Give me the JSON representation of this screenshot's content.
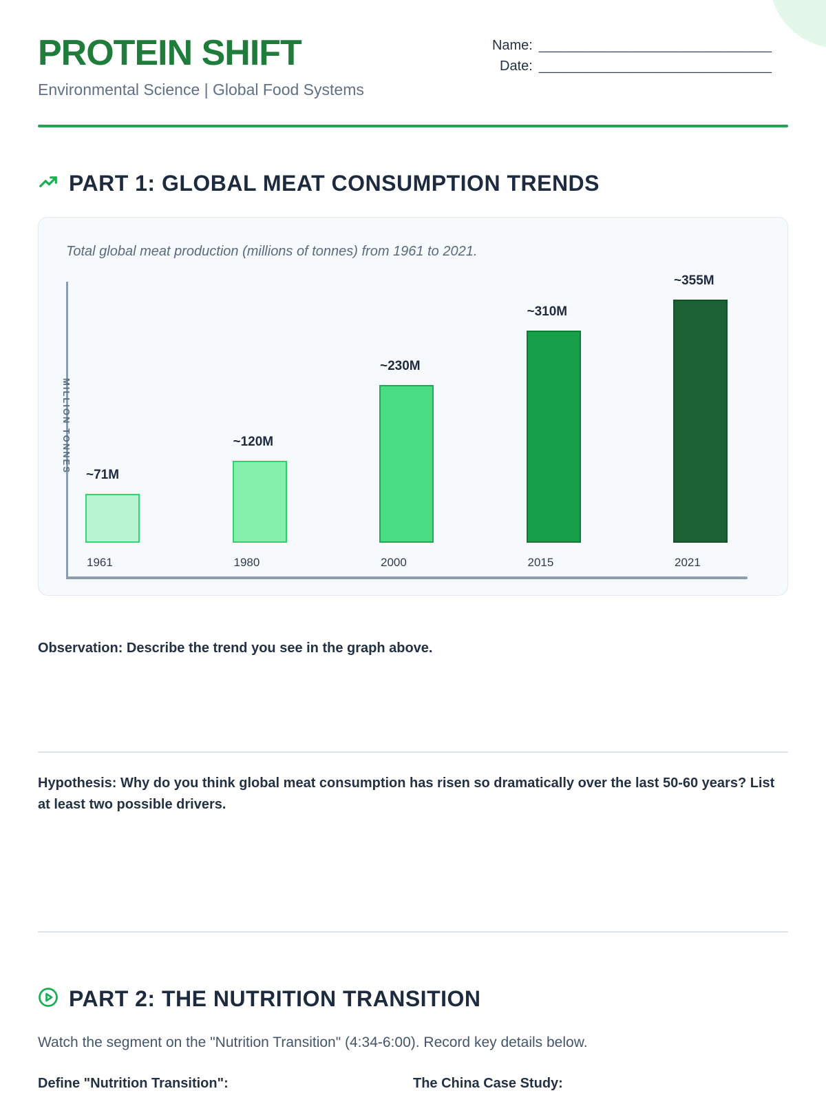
{
  "header": {
    "title": "PROTEIN SHIFT",
    "subtitle": "Environmental Science | Global Food Systems",
    "name_label": "Name:",
    "date_label": "Date:",
    "name_line": "________________________________",
    "date_line": "________________________________"
  },
  "part1": {
    "heading": "PART 1: GLOBAL MEAT CONSUMPTION TRENDS",
    "observation_prompt": "Observation: Describe the trend you see in the graph above.",
    "hypothesis_prompt": "Hypothesis: Why do you think global meat consumption has risen so dramatically over the last 50-60 years? List at least two possible drivers."
  },
  "part2": {
    "heading": "PART 2: THE NUTRITION TRANSITION",
    "instruction": "Watch the segment on the \"Nutrition Transition\" (4:34-6:00). Record key details below.",
    "left_heading": "Define \"Nutrition Transition\":",
    "right_heading": "The China Case Study:"
  },
  "chart_data": {
    "type": "bar",
    "title": "Total global meat production (millions of tonnes) from 1961 to 2021.",
    "ylabel": "MILLION TONNES",
    "xlabel": "",
    "categories": [
      "1961",
      "1980",
      "2000",
      "2015",
      "2021"
    ],
    "values": [
      71,
      120,
      230,
      310,
      355
    ],
    "value_labels": [
      "~71M",
      "~120M",
      "~230M",
      "~310M",
      "~355M"
    ],
    "unit": "million tonnes",
    "ylim": [
      0,
      380
    ],
    "grid": false,
    "legend": false,
    "bar_fills": [
      "#b9f4d0",
      "#85efac",
      "#49dc83",
      "#179f4a",
      "#1a6134"
    ],
    "bar_borders": [
      "#31d673",
      "#2bd26f",
      "#1cab57",
      "#0e7c37",
      "#14512b"
    ]
  },
  "colors": {
    "brand_green": "#1f7c3a",
    "icon_green": "#1cae55",
    "rule_green": "#21a454",
    "ink": "#223044",
    "muted_text": "#5f7086",
    "axis_gray": "#8d9cae",
    "card_bg": "#f7fafc",
    "card_border": "#e3e9f0",
    "divider": "#dde3eb",
    "decor_mint": "#e4f7eb"
  }
}
